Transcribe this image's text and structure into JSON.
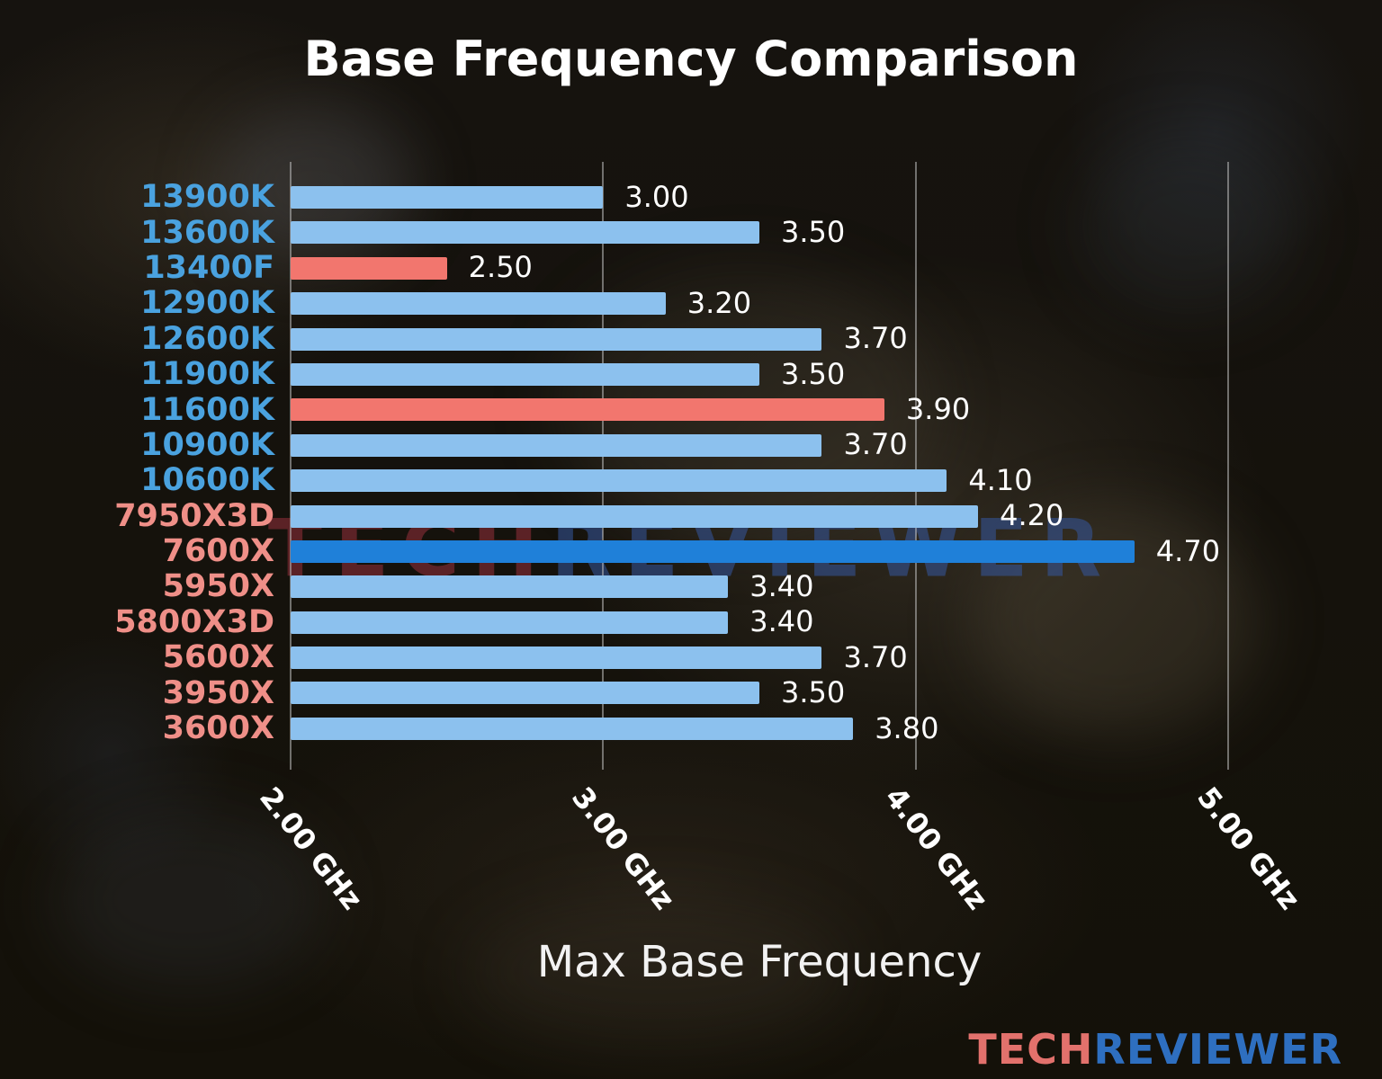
{
  "title": "Base Frequency Comparison",
  "x_axis_label": "Max Base Frequency",
  "watermark": {
    "tech": "TECH",
    "reviewer": "REVIEWER"
  },
  "logo": {
    "tech": "TECH",
    "reviewer": "REVIEWER"
  },
  "colors": {
    "bar_blue": "#8CC1EE",
    "bar_blue_dark": "#1F80D9",
    "bar_red": "#F2766E",
    "label_intel": "#4AA2DF",
    "label_amd": "#EF8F88",
    "value_text": "#FFFFFF",
    "grid": "#BEBEBE",
    "background": "#15120E"
  },
  "chart_data": {
    "type": "bar",
    "orientation": "horizontal",
    "title": "Base Frequency Comparison",
    "xlabel": "Max Base Frequency",
    "xlim": [
      2.0,
      5.0
    ],
    "grid": true,
    "x_ticks": [
      {
        "value": 2.0,
        "label": "2.00 GHz"
      },
      {
        "value": 3.0,
        "label": "3.00 GHz"
      },
      {
        "value": 4.0,
        "label": "4.00 GHz"
      },
      {
        "value": 5.0,
        "label": "5.00 GHz"
      }
    ],
    "bars": [
      {
        "category": "13900K",
        "value": 3.0,
        "value_label": "3.00",
        "vendor": "intel",
        "bar_style": "blue"
      },
      {
        "category": "13600K",
        "value": 3.5,
        "value_label": "3.50",
        "vendor": "intel",
        "bar_style": "blue"
      },
      {
        "category": "13400F",
        "value": 2.5,
        "value_label": "2.50",
        "vendor": "intel",
        "bar_style": "red"
      },
      {
        "category": "12900K",
        "value": 3.2,
        "value_label": "3.20",
        "vendor": "intel",
        "bar_style": "blue"
      },
      {
        "category": "12600K",
        "value": 3.7,
        "value_label": "3.70",
        "vendor": "intel",
        "bar_style": "blue"
      },
      {
        "category": "11900K",
        "value": 3.5,
        "value_label": "3.50",
        "vendor": "intel",
        "bar_style": "blue"
      },
      {
        "category": "11600K",
        "value": 3.9,
        "value_label": "3.90",
        "vendor": "intel",
        "bar_style": "red"
      },
      {
        "category": "10900K",
        "value": 3.7,
        "value_label": "3.70",
        "vendor": "intel",
        "bar_style": "blue"
      },
      {
        "category": "10600K",
        "value": 4.1,
        "value_label": "4.10",
        "vendor": "intel",
        "bar_style": "blue"
      },
      {
        "category": "7950X3D",
        "value": 4.2,
        "value_label": "4.20",
        "vendor": "amd",
        "bar_style": "blue"
      },
      {
        "category": "7600X",
        "value": 4.7,
        "value_label": "4.70",
        "vendor": "amd",
        "bar_style": "blue_dark"
      },
      {
        "category": "5950X",
        "value": 3.4,
        "value_label": "3.40",
        "vendor": "amd",
        "bar_style": "blue"
      },
      {
        "category": "5800X3D",
        "value": 3.4,
        "value_label": "3.40",
        "vendor": "amd",
        "bar_style": "blue"
      },
      {
        "category": "5600X",
        "value": 3.7,
        "value_label": "3.70",
        "vendor": "amd",
        "bar_style": "blue"
      },
      {
        "category": "3950X",
        "value": 3.5,
        "value_label": "3.50",
        "vendor": "amd",
        "bar_style": "blue"
      },
      {
        "category": "3600X",
        "value": 3.8,
        "value_label": "3.80",
        "vendor": "amd",
        "bar_style": "blue"
      }
    ]
  }
}
